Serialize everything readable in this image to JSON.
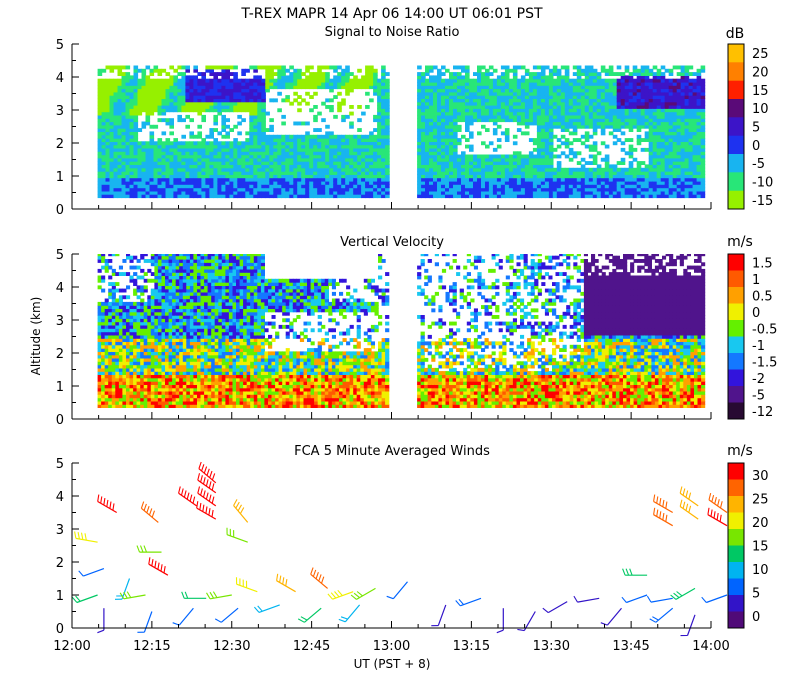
{
  "figure": {
    "title": "T-REX  MAPR 14 Apr 06  14:00 UT  06:01  PST",
    "xlabel": "UT  (PST + 8)",
    "ylabel": "Altitude (km)",
    "x_ticks": [
      "12:00",
      "12:15",
      "12:30",
      "12:45",
      "13:00",
      "13:15",
      "13:30",
      "13:45",
      "14:00"
    ],
    "y_ticks": [
      "0",
      "1",
      "2",
      "3",
      "4",
      "5"
    ]
  },
  "chart_data": [
    {
      "type": "heatmap",
      "title": "Signal to Noise Ratio",
      "xlabel": "UT  (PST + 8)",
      "ylabel": "Altitude (km)",
      "x_range_utc": [
        "12:00",
        "14:00"
      ],
      "ylim": [
        0,
        5
      ],
      "colorbar": {
        "unit": "dB",
        "tick_labels": [
          "25",
          "20",
          "15",
          "10",
          "5",
          "0",
          "-5",
          "-10",
          "-15"
        ],
        "colors": [
          "#ffc000",
          "#ff8000",
          "#ff2000",
          "#5a0a78",
          "#3c14c8",
          "#1e32f0",
          "#18b4f0",
          "#28e678",
          "#96f000"
        ]
      },
      "data_gap_utc": [
        "13:00",
        "13:05"
      ],
      "range_gates_km": [
        0.3,
        4.2
      ]
    },
    {
      "type": "heatmap",
      "title": "Vertical Velocity",
      "xlabel": "UT  (PST + 8)",
      "ylabel": "Altitude (km)",
      "x_range_utc": [
        "12:00",
        "14:00"
      ],
      "ylim": [
        0,
        5
      ],
      "colorbar": {
        "unit": "m/s",
        "tick_labels": [
          "1.5",
          "1",
          "0.5",
          "0",
          "-0.5",
          "-1",
          "-1.5",
          "-2",
          "-5",
          "-12"
        ],
        "colors": [
          "#ff0000",
          "#ff5a00",
          "#ffa000",
          "#f0f000",
          "#64f000",
          "#18c8f0",
          "#1478ff",
          "#3214dc",
          "#50148c",
          "#280a32"
        ]
      },
      "data_gap_utc": [
        "13:00",
        "13:05"
      ]
    },
    {
      "type": "scatter",
      "title": "FCA 5 Minute Averaged Winds",
      "xlabel": "UT  (PST + 8)",
      "ylabel": "Altitude (km)",
      "x_range_utc": [
        "12:00",
        "14:00"
      ],
      "ylim": [
        0,
        5
      ],
      "colorbar": {
        "unit": "m/s",
        "tick_labels": [
          "30",
          "25",
          "20",
          "15",
          "10",
          "5",
          "0"
        ],
        "colors": [
          "#ff0000",
          "#ff6400",
          "#ffb400",
          "#f0f000",
          "#78e600",
          "#00c864",
          "#00b4f0",
          "#0064ff",
          "#3214c8",
          "#500a78"
        ]
      },
      "barbs": [
        {
          "t": 12.14,
          "alt": 3.5,
          "spd": 28,
          "dir": 300
        },
        {
          "t": 12.27,
          "alt": 3.2,
          "spd": 24,
          "dir": 310
        },
        {
          "t": 12.39,
          "alt": 3.7,
          "spd": 29,
          "dir": 305
        },
        {
          "t": 12.45,
          "alt": 3.3,
          "spd": 29,
          "dir": 300
        },
        {
          "t": 12.45,
          "alt": 3.7,
          "spd": 29,
          "dir": 305
        },
        {
          "t": 12.45,
          "alt": 4.1,
          "spd": 30,
          "dir": 305
        },
        {
          "t": 12.45,
          "alt": 4.4,
          "spd": 30,
          "dir": 310
        },
        {
          "t": 12.55,
          "alt": 3.2,
          "spd": 22,
          "dir": 320
        },
        {
          "t": 12.55,
          "alt": 2.6,
          "spd": 17,
          "dir": 290
        },
        {
          "t": 12.08,
          "alt": 2.6,
          "spd": 18,
          "dir": 280
        },
        {
          "t": 12.28,
          "alt": 2.3,
          "spd": 16,
          "dir": 270
        },
        {
          "t": 12.1,
          "alt": 1.8,
          "spd": 6,
          "dir": 250
        },
        {
          "t": 12.18,
          "alt": 1.5,
          "spd": 9,
          "dir": 200
        },
        {
          "t": 12.3,
          "alt": 1.6,
          "spd": 28,
          "dir": 300
        },
        {
          "t": 12.08,
          "alt": 1.0,
          "spd": 12,
          "dir": 250
        },
        {
          "t": 12.23,
          "alt": 1.0,
          "spd": 16,
          "dir": 260
        },
        {
          "t": 12.42,
          "alt": 0.9,
          "spd": 12,
          "dir": 270
        },
        {
          "t": 12.5,
          "alt": 1.0,
          "spd": 15,
          "dir": 260
        },
        {
          "t": 12.58,
          "alt": 1.1,
          "spd": 20,
          "dir": 290
        },
        {
          "t": 12.7,
          "alt": 1.1,
          "spd": 22,
          "dir": 300
        },
        {
          "t": 12.8,
          "alt": 1.2,
          "spd": 26,
          "dir": 310
        },
        {
          "t": 12.88,
          "alt": 1.1,
          "spd": 18,
          "dir": 250
        },
        {
          "t": 12.95,
          "alt": 1.2,
          "spd": 16,
          "dir": 240
        },
        {
          "t": 13.05,
          "alt": 1.4,
          "spd": 6,
          "dir": 220
        },
        {
          "t": 12.1,
          "alt": 0.6,
          "spd": 5,
          "dir": 180
        },
        {
          "t": 12.25,
          "alt": 0.5,
          "spd": 6,
          "dir": 200
        },
        {
          "t": 12.38,
          "alt": 0.6,
          "spd": 7,
          "dir": 220
        },
        {
          "t": 12.52,
          "alt": 0.6,
          "spd": 6,
          "dir": 230
        },
        {
          "t": 12.65,
          "alt": 0.7,
          "spd": 9,
          "dir": 250
        },
        {
          "t": 12.78,
          "alt": 0.6,
          "spd": 12,
          "dir": 230
        },
        {
          "t": 12.9,
          "alt": 0.7,
          "spd": 9,
          "dir": 220
        },
        {
          "t": 13.17,
          "alt": 0.7,
          "spd": 4,
          "dir": 200
        },
        {
          "t": 13.28,
          "alt": 0.9,
          "spd": 8,
          "dir": 250
        },
        {
          "t": 13.35,
          "alt": 0.6,
          "spd": 5,
          "dir": 180
        },
        {
          "t": 13.45,
          "alt": 0.5,
          "spd": 3,
          "dir": 210
        },
        {
          "t": 13.55,
          "alt": 0.8,
          "spd": 5,
          "dir": 240
        },
        {
          "t": 13.65,
          "alt": 0.9,
          "spd": 5,
          "dir": 260
        },
        {
          "t": 13.72,
          "alt": 0.6,
          "spd": 4,
          "dir": 220
        },
        {
          "t": 13.8,
          "alt": 1.0,
          "spd": 6,
          "dir": 250
        },
        {
          "t": 13.88,
          "alt": 0.9,
          "spd": 7,
          "dir": 260
        },
        {
          "t": 13.95,
          "alt": 1.2,
          "spd": 13,
          "dir": 240
        },
        {
          "t": 13.88,
          "alt": 0.6,
          "spd": 8,
          "dir": 230
        },
        {
          "t": 13.95,
          "alt": 0.4,
          "spd": 5,
          "dir": 200
        },
        {
          "t": 14.05,
          "alt": 1.0,
          "spd": 6,
          "dir": 250
        },
        {
          "t": 13.8,
          "alt": 1.6,
          "spd": 14,
          "dir": 270
        },
        {
          "t": 13.88,
          "alt": 3.1,
          "spd": 24,
          "dir": 300
        },
        {
          "t": 13.88,
          "alt": 3.5,
          "spd": 26,
          "dir": 300
        },
        {
          "t": 13.96,
          "alt": 3.3,
          "spd": 22,
          "dir": 305
        },
        {
          "t": 13.96,
          "alt": 3.7,
          "spd": 22,
          "dir": 305
        },
        {
          "t": 14.05,
          "alt": 3.1,
          "spd": 27,
          "dir": 300
        },
        {
          "t": 14.05,
          "alt": 3.5,
          "spd": 24,
          "dir": 305
        }
      ]
    }
  ]
}
